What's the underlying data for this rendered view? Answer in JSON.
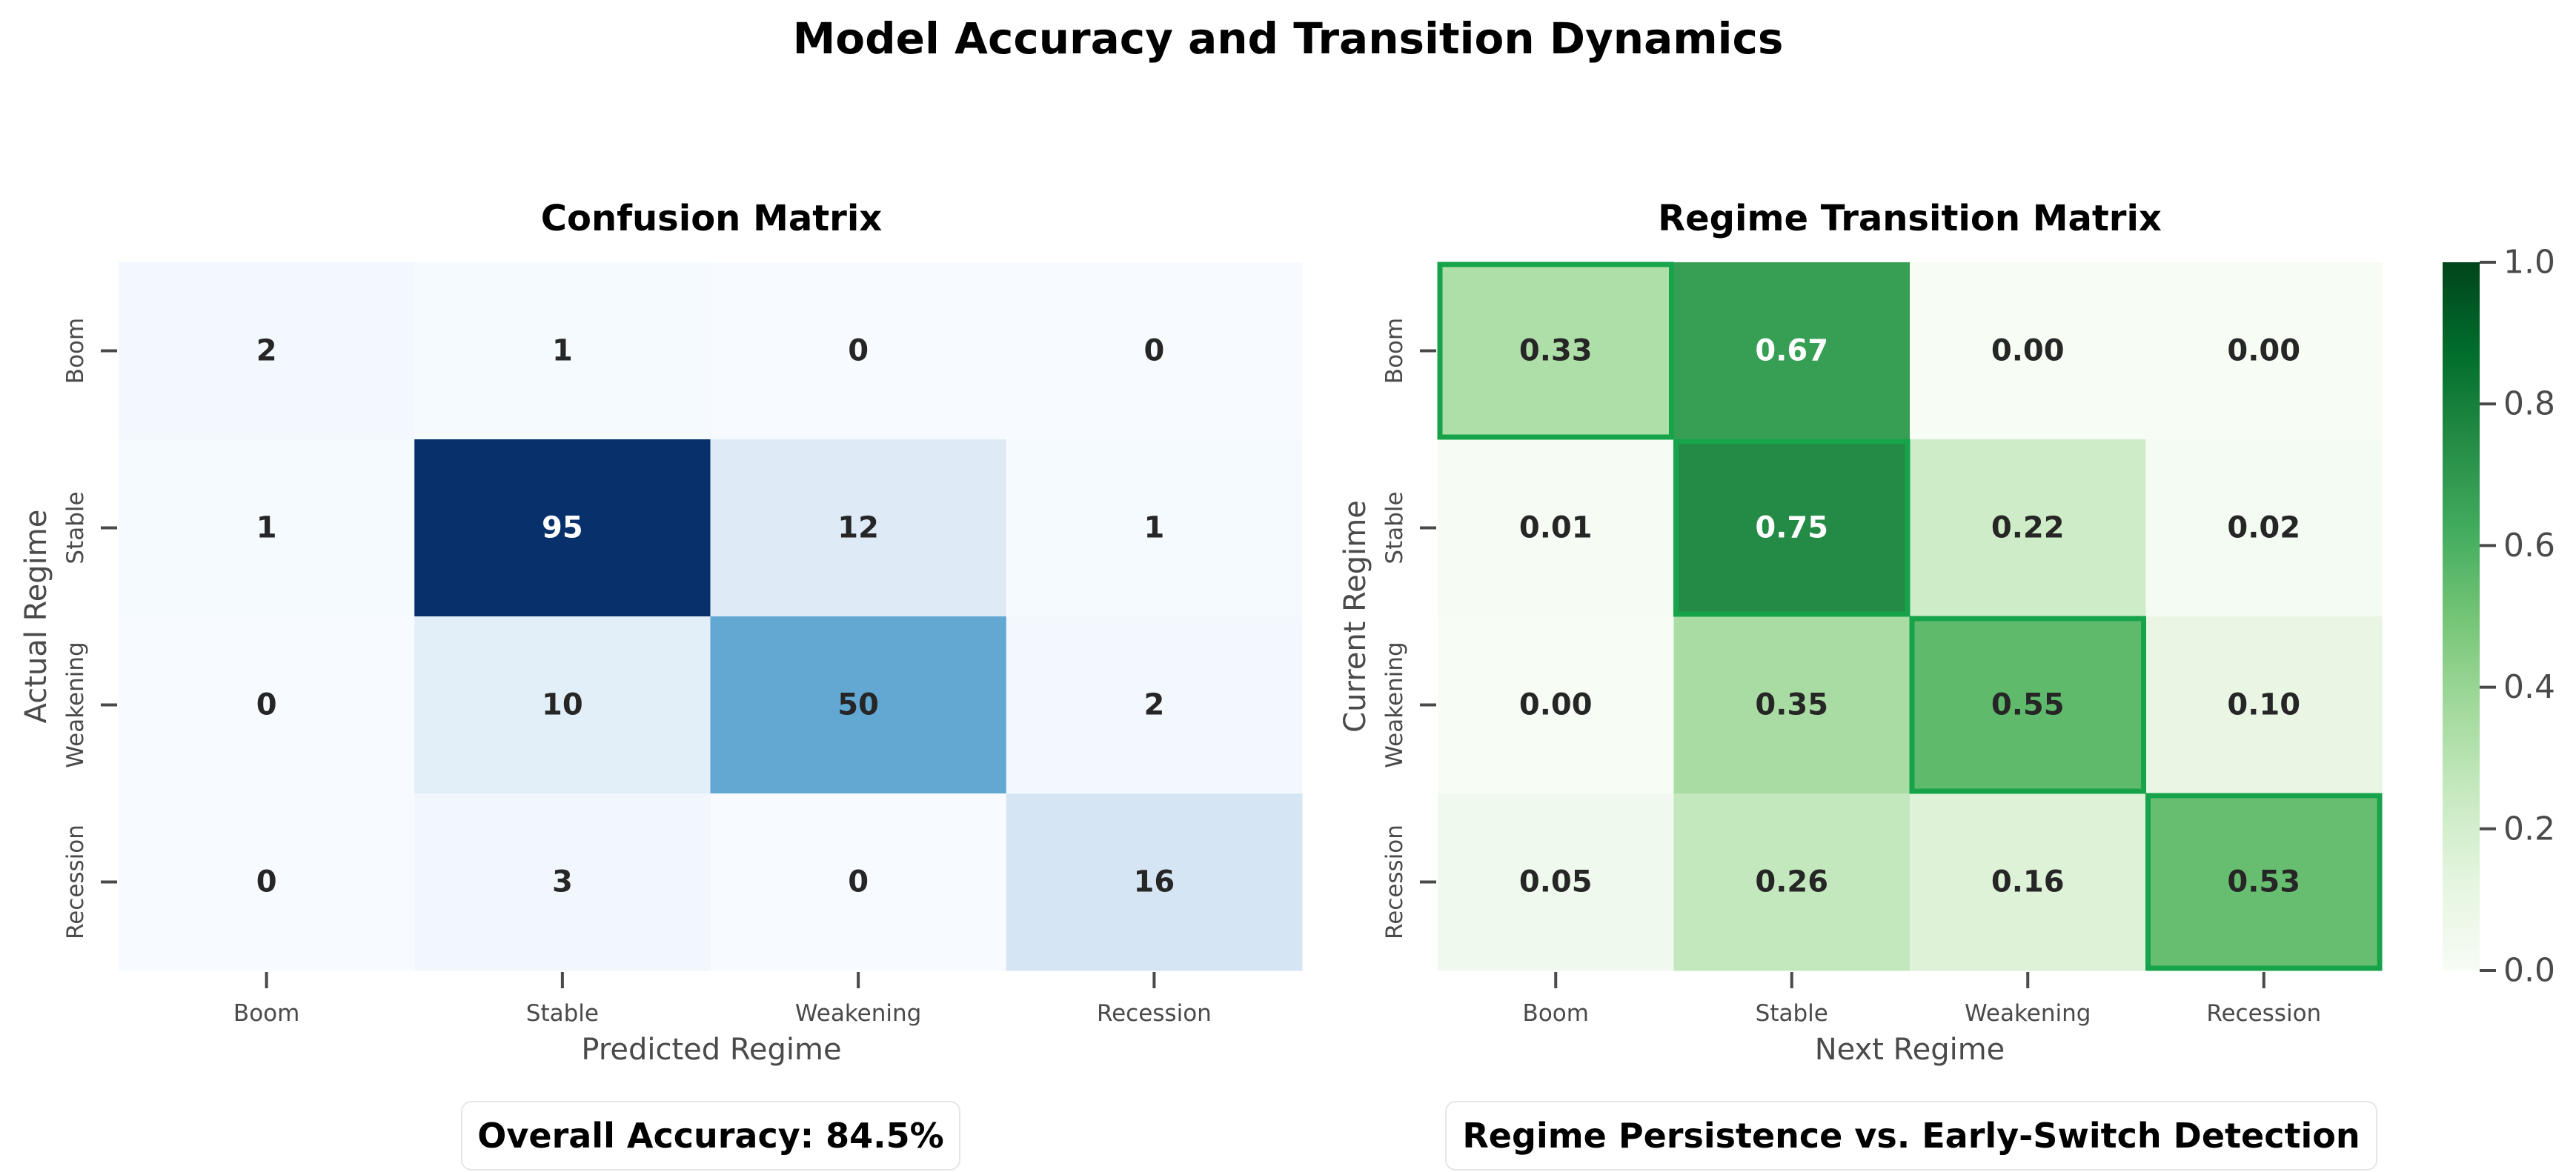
{
  "figure": {
    "suptitle": "Model Accuracy and Transition Dynamics"
  },
  "chart_data": [
    {
      "type": "heatmap",
      "title": "Confusion Matrix",
      "xlabel": "Predicted Regime",
      "ylabel": "Actual Regime",
      "x_categories": [
        "Boom",
        "Stable",
        "Weakening",
        "Recession"
      ],
      "y_categories": [
        "Boom",
        "Stable",
        "Weakening",
        "Recession"
      ],
      "values": [
        [
          2,
          1,
          0,
          0
        ],
        [
          1,
          95,
          12,
          1
        ],
        [
          0,
          10,
          50,
          2
        ],
        [
          0,
          3,
          0,
          16
        ]
      ],
      "value_format": "int",
      "colormap": "Blues",
      "vmin": 0,
      "vmax": 95,
      "colorbar": false,
      "annotation": "Overall Accuracy: 84.5%"
    },
    {
      "type": "heatmap",
      "title": "Regime Transition Matrix",
      "xlabel": "Next Regime",
      "ylabel": "Current Regime",
      "x_categories": [
        "Boom",
        "Stable",
        "Weakening",
        "Recession"
      ],
      "y_categories": [
        "Boom",
        "Stable",
        "Weakening",
        "Recession"
      ],
      "values": [
        [
          0.33,
          0.67,
          0.0,
          0.0
        ],
        [
          0.01,
          0.75,
          0.22,
          0.02
        ],
        [
          0.0,
          0.35,
          0.55,
          0.1
        ],
        [
          0.05,
          0.26,
          0.16,
          0.53
        ]
      ],
      "value_format": "2f",
      "colormap": "Greens",
      "vmin": 0,
      "vmax": 1,
      "colorbar": true,
      "colorbar_ticks": [
        "0.0",
        "0.2",
        "0.4",
        "0.6",
        "0.8",
        "1.0"
      ],
      "highlight_diagonal": true,
      "highlight_color": "#16a34a",
      "annotation": "Regime Persistence vs. Early-Switch Detection"
    }
  ]
}
